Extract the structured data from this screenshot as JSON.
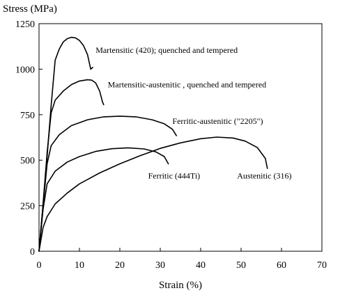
{
  "chart_data": {
    "type": "line",
    "title": "",
    "xlabel": "Strain (%)",
    "ylabel": "Stress (MPa)",
    "xlim": [
      0,
      70
    ],
    "ylim": [
      0,
      1250
    ],
    "xticks": [
      0,
      10,
      20,
      30,
      40,
      50,
      60,
      70
    ],
    "yticks": [
      0,
      250,
      500,
      750,
      1000,
      1250
    ],
    "grid": false,
    "legend": "none",
    "series": [
      {
        "name": "Martensitic (420); quenched and tempered",
        "points": [
          [
            0,
            0
          ],
          [
            1,
            250
          ],
          [
            2,
            520
          ],
          [
            3,
            800
          ],
          [
            4,
            1050
          ],
          [
            5,
            1110
          ],
          [
            6,
            1150
          ],
          [
            7,
            1168
          ],
          [
            8,
            1175
          ],
          [
            9,
            1172
          ],
          [
            10,
            1158
          ],
          [
            11,
            1130
          ],
          [
            12,
            1080
          ],
          [
            12.8,
            1000
          ],
          [
            13.3,
            1010
          ],
          [
            13.3,
            1010
          ]
        ]
      },
      {
        "name": "Martensitic-austenitic , quenched and tempered",
        "points": [
          [
            0,
            0
          ],
          [
            1,
            260
          ],
          [
            2,
            540
          ],
          [
            3,
            760
          ],
          [
            4,
            830
          ],
          [
            6,
            880
          ],
          [
            8,
            915
          ],
          [
            10,
            935
          ],
          [
            12,
            942
          ],
          [
            13,
            940
          ],
          [
            14,
            925
          ],
          [
            15,
            880
          ],
          [
            15.7,
            820
          ],
          [
            16,
            805
          ]
        ]
      },
      {
        "name": "Ferritic-austenitic (\"2205\")",
        "points": [
          [
            0,
            0
          ],
          [
            1,
            250
          ],
          [
            2,
            480
          ],
          [
            3,
            580
          ],
          [
            5,
            640
          ],
          [
            8,
            690
          ],
          [
            12,
            722
          ],
          [
            16,
            738
          ],
          [
            20,
            742
          ],
          [
            24,
            738
          ],
          [
            28,
            722
          ],
          [
            31,
            700
          ],
          [
            33,
            670
          ],
          [
            34,
            635
          ]
        ]
      },
      {
        "name": "Ferritic (444Ti)",
        "points": [
          [
            0,
            0
          ],
          [
            1,
            230
          ],
          [
            2,
            370
          ],
          [
            4,
            440
          ],
          [
            7,
            490
          ],
          [
            10,
            520
          ],
          [
            14,
            548
          ],
          [
            18,
            563
          ],
          [
            22,
            568
          ],
          [
            26,
            562
          ],
          [
            29,
            545
          ],
          [
            31,
            520
          ],
          [
            32,
            480
          ]
        ]
      },
      {
        "name": "Austenitic (316)",
        "points": [
          [
            0,
            0
          ],
          [
            1,
            130
          ],
          [
            2,
            190
          ],
          [
            4,
            260
          ],
          [
            7,
            320
          ],
          [
            10,
            370
          ],
          [
            15,
            430
          ],
          [
            20,
            480
          ],
          [
            25,
            525
          ],
          [
            30,
            565
          ],
          [
            35,
            595
          ],
          [
            40,
            618
          ],
          [
            44,
            627
          ],
          [
            48,
            622
          ],
          [
            51,
            605
          ],
          [
            54,
            570
          ],
          [
            56,
            510
          ],
          [
            56.5,
            455
          ]
        ]
      }
    ],
    "annotations": [
      {
        "text": "Martensitic (420); quenched and tempered",
        "x": 14,
        "y": 1090
      },
      {
        "text": "Martensitic-austenitic , quenched and tempered",
        "x": 17,
        "y": 900
      },
      {
        "text": "Ferritic-austenitic (\"2205\")",
        "x": 33,
        "y": 700
      },
      {
        "text": "Ferritic (444Ti)",
        "x": 27,
        "y": 400
      },
      {
        "text": "Austenitic (316)",
        "x": 49,
        "y": 400
      }
    ]
  }
}
